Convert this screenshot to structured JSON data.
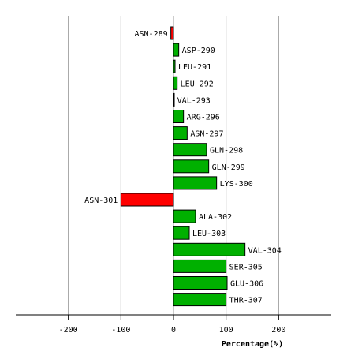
{
  "chart_data": {
    "type": "hbar",
    "categories": [
      "ASN-289",
      "ASP-290",
      "LEU-291",
      "LEU-292",
      "VAL-293",
      "ARG-296",
      "ASN-297",
      "GLN-298",
      "GLN-299",
      "LYS-300",
      "ASN-301",
      "ALA-302",
      "LEU-303",
      "VAL-304",
      "SER-305",
      "GLU-306",
      "THR-307"
    ],
    "values": [
      -5,
      10,
      3,
      7,
      1,
      19,
      26,
      63,
      67,
      82,
      -100,
      42,
      30,
      136,
      100,
      102,
      100
    ],
    "positive_color": "#00b000",
    "negative_color": "#ff0000",
    "xlim": [
      -300,
      300
    ],
    "xticks": [
      -200,
      -100,
      0,
      100,
      200
    ],
    "xlabel": "Percentage(%)",
    "grid": true
  }
}
